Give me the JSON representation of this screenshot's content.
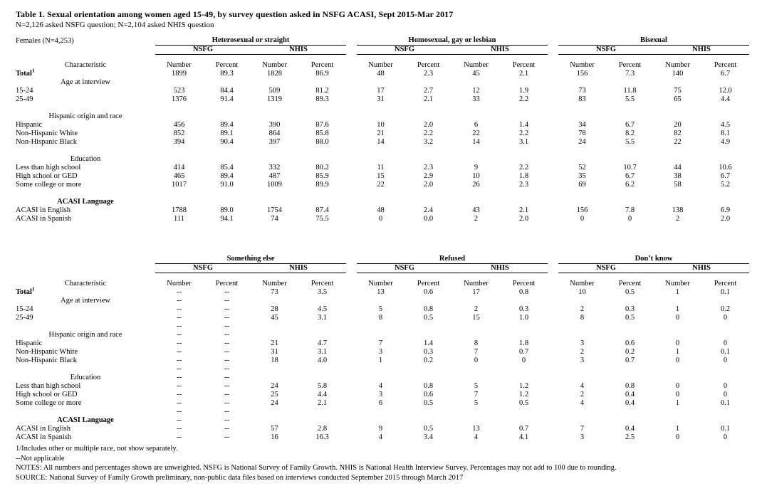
{
  "document": {
    "title": "Table 1.  Sexual orientation among women aged 15-49, by survey question asked in NSFG ACASI, Sept 2015-Mar 2017",
    "subtitle": "N=2,126 asked NSFG question; N=2,104 asked NHIS question",
    "population_label": "Females (N=4,253)"
  },
  "columns": {
    "characteristic": "Characteristic",
    "surveys": [
      "NSFG",
      "NHIS"
    ],
    "measures": [
      "Number",
      "Percent"
    ]
  },
  "tables": [
    {
      "groups": [
        "Heterosexual or straight",
        "Homosexual, gay or lesbian",
        "Bisexual"
      ],
      "rows": [
        {
          "type": "total",
          "label": "Total",
          "sup": "1",
          "values": [
            "1899",
            "89.3",
            "1828",
            "86.9",
            "48",
            "2.3",
            "45",
            "2.1",
            "156",
            "7.3",
            "140",
            "6.7"
          ]
        },
        {
          "type": "section",
          "label": "Age at interview",
          "values": []
        },
        {
          "type": "data",
          "label": "15-24",
          "values": [
            "523",
            "84.4",
            "509",
            "81.2",
            "17",
            "2.7",
            "12",
            "1.9",
            "73",
            "11.8",
            "75",
            "12.0"
          ]
        },
        {
          "type": "data",
          "label": "25-49",
          "values": [
            "1376",
            "91.4",
            "1319",
            "89.3",
            "31",
            "2.1",
            "33",
            "2.2",
            "83",
            "5.5",
            "65",
            "4.4"
          ]
        },
        {
          "type": "spacer",
          "label": "",
          "values": []
        },
        {
          "type": "section",
          "label": "Hispanic origin and race",
          "values": []
        },
        {
          "type": "data",
          "label": "Hispanic",
          "values": [
            "456",
            "89.4",
            "390",
            "87.6",
            "10",
            "2.0",
            "6",
            "1.4",
            "34",
            "6.7",
            "20",
            "4.5"
          ]
        },
        {
          "type": "data",
          "label": "Non-Hispanic White",
          "values": [
            "852",
            "89.1",
            "864",
            "85.8",
            "21",
            "2.2",
            "22",
            "2.2",
            "78",
            "8.2",
            "82",
            "8.1"
          ]
        },
        {
          "type": "data",
          "label": "Non-Hispanic Black",
          "values": [
            "394",
            "90.4",
            "397",
            "88.0",
            "14",
            "3.2",
            "14",
            "3.1",
            "24",
            "5.5",
            "22",
            "4.9"
          ]
        },
        {
          "type": "spacer",
          "label": "",
          "values": []
        },
        {
          "type": "section",
          "label": "Education",
          "values": []
        },
        {
          "type": "data",
          "label": "Less than high school",
          "values": [
            "414",
            "85.4",
            "332",
            "80.2",
            "11",
            "2.3",
            "9",
            "2.2",
            "52",
            "10.7",
            "44",
            "10.6"
          ]
        },
        {
          "type": "data",
          "label": "High school or GED",
          "values": [
            "465",
            "89.4",
            "487",
            "85.9",
            "15",
            "2.9",
            "10",
            "1.8",
            "35",
            "6.7",
            "38",
            "6.7"
          ]
        },
        {
          "type": "data",
          "label": "Some college or more",
          "values": [
            "1017",
            "91.0",
            "1009",
            "89.9",
            "22",
            "2.0",
            "26",
            "2.3",
            "69",
            "6.2",
            "58",
            "5.2"
          ]
        },
        {
          "type": "spacer",
          "label": "",
          "values": []
        },
        {
          "type": "section",
          "label": "ACASI Language",
          "small": true,
          "values": []
        },
        {
          "type": "data",
          "label": "ACASI in English",
          "values": [
            "1788",
            "89.0",
            "1754",
            "87.4",
            "48",
            "2.4",
            "43",
            "2.1",
            "156",
            "7.8",
            "138",
            "6.9"
          ]
        },
        {
          "type": "data",
          "label": "ACASI in Spanish",
          "values": [
            "111",
            "94.1",
            "74",
            "75.5",
            "0",
            "0.0",
            "2",
            "2.0",
            "0",
            "0",
            "2",
            "2.0"
          ]
        }
      ]
    },
    {
      "groups": [
        "Something else",
        "Refused",
        "Don’t know"
      ],
      "rows": [
        {
          "type": "total",
          "label": "Total",
          "sup": "1",
          "values": [
            "--",
            "--",
            "73",
            "3.5",
            "13",
            "0.6",
            "17",
            "0.8",
            "10",
            "0.5",
            "1",
            "0.1"
          ]
        },
        {
          "type": "section",
          "label": "Age at interview",
          "values": [
            "--",
            "--"
          ]
        },
        {
          "type": "data",
          "label": "15-24",
          "values": [
            "--",
            "--",
            "28",
            "4.5",
            "5",
            "0.8",
            "2",
            "0.3",
            "2",
            "0.3",
            "1",
            "0.2"
          ]
        },
        {
          "type": "data",
          "label": "25-49",
          "values": [
            "--",
            "--",
            "45",
            "3.1",
            "8",
            "0.5",
            "15",
            "1.0",
            "8",
            "0.5",
            "0",
            "0"
          ]
        },
        {
          "type": "spacer",
          "label": "",
          "values": [
            "--",
            "--"
          ]
        },
        {
          "type": "section",
          "label": "Hispanic origin and race",
          "values": [
            "--",
            "--"
          ]
        },
        {
          "type": "data",
          "label": "Hispanic",
          "values": [
            "--",
            "--",
            "21",
            "4.7",
            "7",
            "1.4",
            "8",
            "1.8",
            "3",
            "0.6",
            "0",
            "0"
          ]
        },
        {
          "type": "data",
          "label": "Non-Hispanic White",
          "values": [
            "--",
            "--",
            "31",
            "3.1",
            "3",
            "0.3",
            "7",
            "0.7",
            "2",
            "0.2",
            "1",
            "0.1"
          ]
        },
        {
          "type": "data",
          "label": "Non-Hispanic Black",
          "values": [
            "--",
            "--",
            "18",
            "4.0",
            "1",
            "0.2",
            "0",
            "0",
            "3",
            "0.7",
            "0",
            "0"
          ]
        },
        {
          "type": "spacer",
          "label": "",
          "values": [
            "--",
            "--"
          ]
        },
        {
          "type": "section",
          "label": "Education",
          "values": [
            "--",
            "--"
          ]
        },
        {
          "type": "data",
          "label": "Less than high school",
          "values": [
            "--",
            "--",
            "24",
            "5.8",
            "4",
            "0.8",
            "5",
            "1.2",
            "4",
            "0.8",
            "0",
            "0"
          ]
        },
        {
          "type": "data",
          "label": "High school or GED",
          "values": [
            "--",
            "--",
            "25",
            "4.4",
            "3",
            "0.6",
            "7",
            "1.2",
            "2",
            "0.4",
            "0",
            "0"
          ]
        },
        {
          "type": "data",
          "label": "Some college or more",
          "values": [
            "--",
            "--",
            "24",
            "2.1",
            "6",
            "0.5",
            "5",
            "0.5",
            "4",
            "0.4",
            "1",
            "0.1"
          ]
        },
        {
          "type": "spacer",
          "label": "",
          "values": [
            "--",
            "--"
          ]
        },
        {
          "type": "section",
          "label": "ACASI Language",
          "small": true,
          "values": [
            "--",
            "--"
          ]
        },
        {
          "type": "data",
          "label": "ACASI in English",
          "values": [
            "--",
            "--",
            "57",
            "2.8",
            "9",
            "0.5",
            "13",
            "0.7",
            "7",
            "0.4",
            "1",
            "0.1"
          ]
        },
        {
          "type": "data",
          "label": "ACASI in Spanish",
          "values": [
            "--",
            "--",
            "16",
            "16.3",
            "4",
            "3.4",
            "4",
            "4.1",
            "3",
            "2.5",
            "0",
            "0"
          ]
        }
      ]
    }
  ],
  "footnotes": [
    "1/Includes other or multiple race, not show separately.",
    "--Not applicable",
    "NOTES: All numbers and percentages shown are unweighted.  NSFG is National Survey of Family Growth.  NHIS is National Health Interview Survey.  Percentages may not add to 100 due to rounding.",
    "SOURCE: National Survey of Family Growth preliminary, non-public data files based on interviews conducted September 2015 through March 2017"
  ]
}
